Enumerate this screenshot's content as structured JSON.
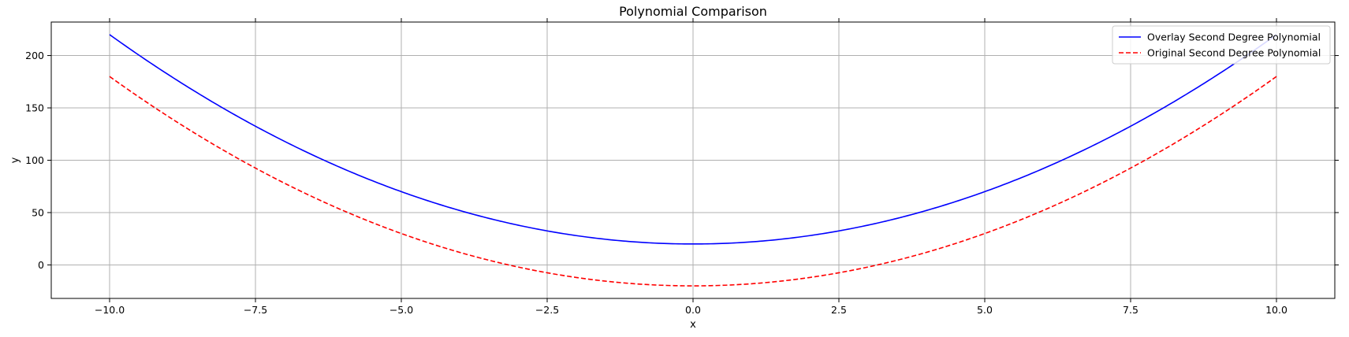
{
  "chart_data": {
    "type": "line",
    "title": "Polynomial Comparison",
    "xlabel": "x",
    "ylabel": "y",
    "xlim": [
      -11.0,
      11.0
    ],
    "ylim": [
      -32,
      232
    ],
    "xticks": [
      -10.0,
      -7.5,
      -5.0,
      -2.5,
      0.0,
      2.5,
      5.0,
      7.5,
      10.0
    ],
    "xtick_labels": [
      "−10.0",
      "−7.5",
      "−5.0",
      "−2.5",
      "0.0",
      "2.5",
      "5.0",
      "7.5",
      "10.0"
    ],
    "yticks": [
      0,
      50,
      100,
      150,
      200
    ],
    "ytick_labels": [
      "0",
      "50",
      "100",
      "150",
      "200"
    ],
    "grid": true,
    "legend_position": "top-right",
    "series": [
      {
        "name": "Overlay Second Degree Polynomial",
        "color": "#0000ff",
        "style": "solid",
        "x": [
          -10,
          -9,
          -8,
          -7,
          -6,
          -5,
          -4,
          -3,
          -2,
          -1,
          0,
          1,
          2,
          3,
          4,
          5,
          6,
          7,
          8,
          9,
          10
        ],
        "y": [
          220,
          182,
          148,
          118,
          92,
          70,
          52,
          38,
          28,
          22,
          20,
          22,
          28,
          38,
          52,
          70,
          92,
          118,
          148,
          182,
          220
        ]
      },
      {
        "name": "Original Second Degree Polynomial",
        "color": "#ff0000",
        "style": "dashed",
        "x": [
          -10,
          -9,
          -8,
          -7,
          -6,
          -5,
          -4,
          -3,
          -2,
          -1,
          0,
          1,
          2,
          3,
          4,
          5,
          6,
          7,
          8,
          9,
          10
        ],
        "y": [
          180,
          142,
          108,
          78,
          52,
          30,
          12,
          -2,
          -12,
          -18,
          -20,
          -18,
          -12,
          -2,
          12,
          30,
          52,
          78,
          108,
          142,
          180
        ]
      }
    ]
  }
}
